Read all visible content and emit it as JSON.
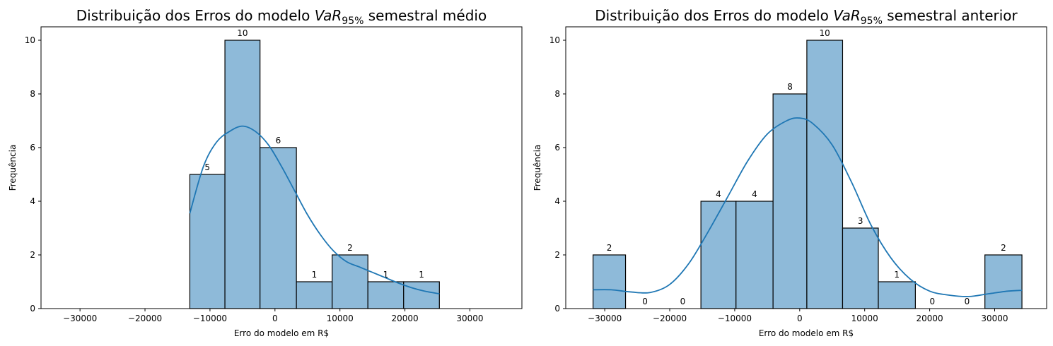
{
  "chart_data": [
    {
      "type": "bar",
      "title": {
        "prefix": "Distribuição dos Erros do modelo ",
        "var": "VaR",
        "sub": "95%",
        "suffix": " semestral médio"
      },
      "xlabel": "Erro do modelo em R$",
      "ylabel": "Frequência",
      "xlim": [
        -36000,
        38000
      ],
      "ylim": [
        0,
        10.5
      ],
      "xticks": [
        -30000,
        -20000,
        -10000,
        0,
        10000,
        20000,
        30000
      ],
      "xtick_labels": [
        "−30000",
        "−20000",
        "−10000",
        "0",
        "10000",
        "20000",
        "30000"
      ],
      "yticks": [
        0,
        2,
        4,
        6,
        8,
        10
      ],
      "ytick_labels": [
        "0",
        "2",
        "4",
        "6",
        "8",
        "10"
      ],
      "bin_edges": [
        -13100,
        -7700,
        -2300,
        3300,
        8800,
        14300,
        19800,
        25300
      ],
      "counts": [
        5,
        10,
        6,
        1,
        2,
        1,
        1
      ],
      "count_labels": [
        "5",
        "10",
        "6",
        "1",
        "2",
        "1",
        "1"
      ],
      "kde": {
        "x": [
          -13100,
          -11000,
          -9000,
          -7000,
          -5000,
          -3000,
          -1000,
          1000,
          3000,
          5000,
          7000,
          9000,
          11000,
          13000,
          15000,
          17000,
          19000,
          21000,
          23000,
          25300
        ],
        "y": [
          3.55,
          5.3,
          6.2,
          6.6,
          6.8,
          6.6,
          6.1,
          5.3,
          4.4,
          3.5,
          2.75,
          2.15,
          1.75,
          1.55,
          1.35,
          1.15,
          0.95,
          0.78,
          0.65,
          0.55
        ]
      },
      "grid": false,
      "colors": {
        "bar": "#8ebad9",
        "edge": "#000000",
        "kde": "#1f77b4"
      }
    },
    {
      "type": "bar",
      "title": {
        "prefix": "Distribuição dos Erros do modelo ",
        "var": "VaR",
        "sub": "95%",
        "suffix": " semestral anterior"
      },
      "xlabel": "Erro do modelo em R$",
      "ylabel": "Frequência",
      "xlim": [
        -36000,
        38000
      ],
      "ylim": [
        0,
        10.5
      ],
      "xticks": [
        -30000,
        -20000,
        -10000,
        0,
        10000,
        20000,
        30000
      ],
      "xtick_labels": [
        "−30000",
        "−20000",
        "−10000",
        "0",
        "10000",
        "20000",
        "30000"
      ],
      "yticks": [
        0,
        2,
        4,
        6,
        8,
        10
      ],
      "ytick_labels": [
        "0",
        "2",
        "4",
        "6",
        "8",
        "10"
      ],
      "bin_edges": [
        -31800,
        -26800,
        -20800,
        -15200,
        -9800,
        -4100,
        1100,
        6600,
        12100,
        17800,
        23000,
        28500,
        34200
      ],
      "counts": [
        2,
        0,
        0,
        4,
        4,
        8,
        10,
        3,
        1,
        0,
        0,
        2
      ],
      "count_labels": [
        "2",
        "0",
        "0",
        "4",
        "4",
        "8",
        "10",
        "3",
        "1",
        "0",
        "0",
        "2"
      ],
      "kde": {
        "x": [
          -31800,
          -29000,
          -26000,
          -23000,
          -20000,
          -17000,
          -14000,
          -11000,
          -8000,
          -5000,
          -2000,
          0,
          2000,
          5000,
          8000,
          11000,
          14000,
          17000,
          20000,
          23000,
          26000,
          29000,
          32000,
          34200
        ],
        "y": [
          0.7,
          0.7,
          0.62,
          0.6,
          0.9,
          1.7,
          2.9,
          4.2,
          5.5,
          6.5,
          7.0,
          7.1,
          6.9,
          6.1,
          4.7,
          3.1,
          1.9,
          1.1,
          0.65,
          0.5,
          0.45,
          0.55,
          0.65,
          0.68
        ]
      },
      "grid": false,
      "colors": {
        "bar": "#8ebad9",
        "edge": "#000000",
        "kde": "#1f77b4"
      }
    }
  ]
}
